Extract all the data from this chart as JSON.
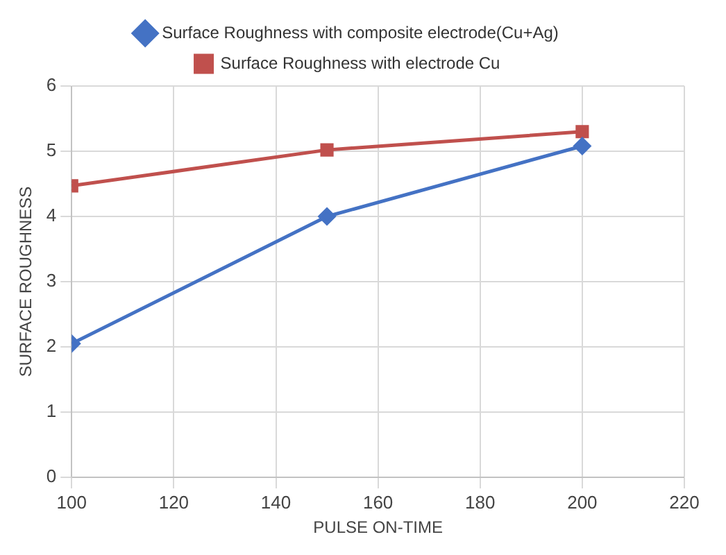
{
  "chart_data": {
    "type": "line",
    "xlabel": "PULSE ON-TIME",
    "ylabel": "SURFACE ROUGHNESS",
    "x": [
      100,
      150,
      200
    ],
    "series": [
      {
        "name": "Surface Roughness with composite electrode(Cu+Ag)",
        "color": "#4472c4",
        "marker": "diamond",
        "values": [
          2.05,
          4.0,
          5.08
        ]
      },
      {
        "name": "Surface Roughness with electrode Cu",
        "color": "#c0504d",
        "marker": "square",
        "values": [
          4.47,
          5.02,
          5.3
        ]
      }
    ],
    "xlim": [
      100,
      220
    ],
    "xticks": [
      100,
      120,
      140,
      160,
      180,
      200,
      220
    ],
    "ylim": [
      0,
      6
    ],
    "yticks": [
      0,
      1,
      2,
      3,
      4,
      5,
      6
    ],
    "grid": true,
    "legend": "top"
  }
}
